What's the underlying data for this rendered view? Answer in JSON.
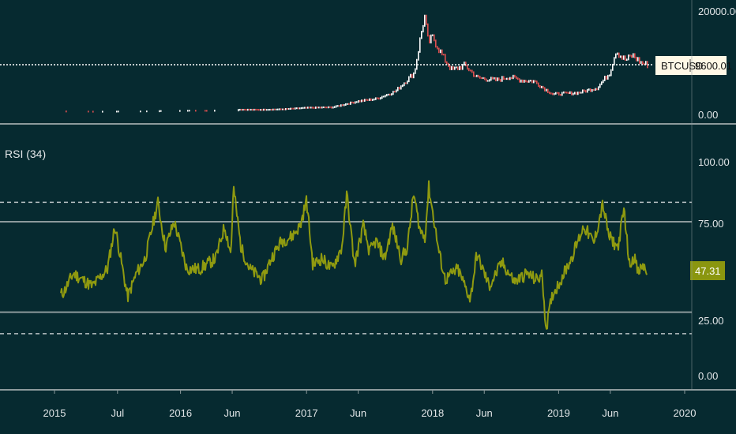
{
  "colors": {
    "background": "#062a30",
    "price_up": "#ffffff",
    "price_down": "#e05050",
    "rsi_line": "#8f9a10",
    "rsi_badge": "#8a960f",
    "band_line": "#8c9a9c",
    "axis_text": "#e2e6e8",
    "price_badge_bg": "#fff8e6"
  },
  "price_panel": {
    "symbol": "BTCUSD",
    "last_value": "9600.01",
    "y_ticks": [
      "20000.00",
      "0.00"
    ]
  },
  "rsi_panel": {
    "title": "RSI (34)",
    "last_value": "47.31",
    "y_ticks": [
      "100.00",
      "75.00",
      "25.00",
      "0.00"
    ]
  },
  "x_axis": {
    "ticks": [
      "2015",
      "Jul",
      "2016",
      "Jun",
      "2017",
      "Jun",
      "2018",
      "Jun",
      "2019",
      "Jun",
      "2020"
    ]
  },
  "chart_data": [
    {
      "type": "line",
      "name": "BTCUSD",
      "x": [
        2015.0,
        2015.1,
        2015.3,
        2015.5,
        2015.75,
        2016.0,
        2016.25,
        2016.45,
        2016.6,
        2016.8,
        2017.0,
        2017.2,
        2017.4,
        2017.55,
        2017.7,
        2017.85,
        2017.93,
        2017.96,
        2018.0,
        2018.08,
        2018.15,
        2018.25,
        2018.35,
        2018.5,
        2018.6,
        2018.7,
        2018.8,
        2018.9,
        2018.95,
        2019.0,
        2019.15,
        2019.3,
        2019.4,
        2019.45,
        2019.5,
        2019.53,
        2019.58,
        2019.65,
        2019.7
      ],
      "values": [
        300,
        250,
        230,
        270,
        300,
        430,
        420,
        650,
        600,
        700,
        1000,
        1100,
        2300,
        2800,
        4300,
        8000,
        19500,
        14000,
        15000,
        11000,
        8500,
        9500,
        7000,
        6500,
        7200,
        6500,
        6300,
        4500,
        3700,
        3800,
        4000,
        5000,
        8000,
        12500,
        11000,
        10500,
        11500,
        10000,
        9600
      ],
      "ylim": [
        0,
        20000
      ],
      "last_value": 9600.01
    },
    {
      "type": "line",
      "name": "RSI (34)",
      "x": [
        2015.05,
        2015.08,
        2015.15,
        2015.3,
        2015.42,
        2015.48,
        2015.58,
        2015.65,
        2015.72,
        2015.82,
        2015.88,
        2015.95,
        2016.05,
        2016.15,
        2016.28,
        2016.35,
        2016.4,
        2016.42,
        2016.48,
        2016.55,
        2016.65,
        2016.72,
        2016.8,
        2016.88,
        2016.95,
        2017.0,
        2017.05,
        2017.12,
        2017.2,
        2017.28,
        2017.32,
        2017.38,
        2017.45,
        2017.5,
        2017.55,
        2017.62,
        2017.68,
        2017.75,
        2017.8,
        2017.85,
        2017.9,
        2017.94,
        2017.97,
        2018.05,
        2018.1,
        2018.2,
        2018.3,
        2018.35,
        2018.45,
        2018.55,
        2018.65,
        2018.75,
        2018.82,
        2018.87,
        2018.9,
        2018.95,
        2019.0,
        2019.1,
        2019.2,
        2019.28,
        2019.35,
        2019.4,
        2019.47,
        2019.52,
        2019.56,
        2019.6,
        2019.63,
        2019.67,
        2019.7
      ],
      "values": [
        38,
        40,
        48,
        42,
        50,
        70,
        37,
        48,
        55,
        81,
        60,
        72,
        50,
        50,
        55,
        70,
        57,
        88,
        60,
        50,
        45,
        55,
        63,
        65,
        70,
        82,
        52,
        55,
        50,
        60,
        85,
        52,
        70,
        58,
        63,
        55,
        70,
        55,
        60,
        85,
        68,
        65,
        88,
        58,
        45,
        50,
        36,
        57,
        42,
        53,
        44,
        48,
        45,
        47,
        22,
        38,
        43,
        55,
        70,
        62,
        80,
        65,
        60,
        78,
        52,
        56,
        48,
        52,
        47.31
      ],
      "ylim": [
        0,
        110
      ],
      "bands_solid": [
        72,
        30
      ],
      "bands_dashed": [
        81,
        20
      ],
      "last_value": 47.31
    }
  ]
}
